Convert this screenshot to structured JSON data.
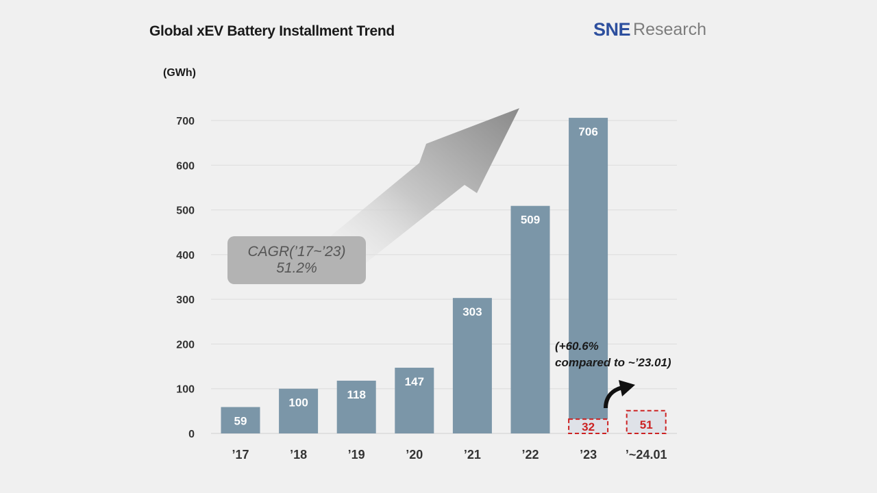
{
  "title": "Global xEV Battery Installment Trend",
  "logo": {
    "sne": "SNE",
    "research": "Research"
  },
  "cagr": {
    "line1": "CAGR(’17~’23)",
    "line2": "51.2%"
  },
  "note": {
    "line1": "(+60.6%",
    "line2": "compared to ~’23.01)"
  },
  "colors": {
    "bar": "#7b96a8",
    "highlight_fill": "#dfe2e8",
    "highlight_border": "#cc2222",
    "arrow": "#8c8c8c"
  },
  "chart_data": {
    "type": "bar",
    "title": "Global xEV Battery Installment Trend",
    "ylabel": "(GWh)",
    "xlabel": "",
    "ylim": [
      0,
      700
    ],
    "yticks": [
      0,
      100,
      200,
      300,
      400,
      500,
      600,
      700
    ],
    "grid": true,
    "categories": [
      "’17",
      "’18",
      "’19",
      "’20",
      "’21",
      "’22",
      "’23",
      "’~24.01"
    ],
    "values": [
      59,
      100,
      118,
      147,
      303,
      509,
      706,
      51
    ],
    "highlight": {
      "category": "’23",
      "value": 32,
      "label": "32"
    },
    "data_labels": [
      "59",
      "100",
      "118",
      "147",
      "303",
      "509",
      "706",
      "51"
    ]
  }
}
